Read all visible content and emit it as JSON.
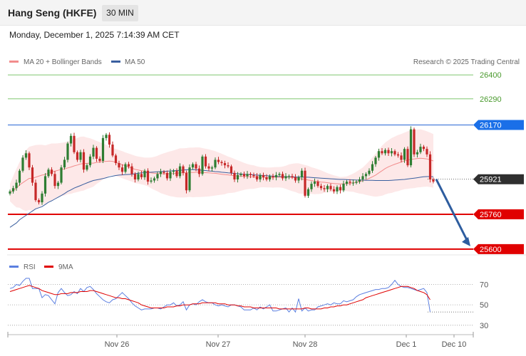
{
  "header": {
    "instrument": "Hang Seng (HKFE)",
    "timeframe": "30 MIN",
    "datetime": "Monday, December 1, 2025 7:14:39 AM CET"
  },
  "legend": {
    "ma20": "MA 20 + Bollinger Bands",
    "ma50": "MA 50",
    "copyright": "Research © 2025 Trading Central",
    "rsi": "RSI",
    "ma9": "9MA"
  },
  "colors": {
    "ma20": "#f28c8c",
    "ma50": "#3a5f9f",
    "band_fill": "#fde4e4",
    "bull": "#2e7d32",
    "bear": "#c62828",
    "resistance": "#6fbf5a",
    "pivot": "#4a7fdc",
    "support": "#e00000",
    "current": "#333333",
    "arrow": "#2e5d9f",
    "rsi": "#5b7fe0",
    "rsi_ma": "#e00000"
  },
  "chart_data": [
    {
      "type": "candlestick",
      "title": "",
      "ylim": [
        25580,
        26430
      ],
      "y_ticks": [
        26400,
        26290,
        26170,
        25921,
        25760,
        25600
      ],
      "x_ticks": [
        "Nov 26",
        "Nov 27",
        "Nov 28",
        "Dec 1",
        "Dec 10"
      ],
      "levels": [
        {
          "value": 26400,
          "label": "26400",
          "kind": "resistance"
        },
        {
          "value": 26290,
          "label": "26290",
          "kind": "resistance"
        },
        {
          "value": 26170,
          "label": "26170",
          "kind": "pivot"
        },
        {
          "value": 25921,
          "label": "25921",
          "kind": "current"
        },
        {
          "value": 25760,
          "label": "25760",
          "kind": "support"
        },
        {
          "value": 25600,
          "label": "25600",
          "kind": "support"
        }
      ],
      "forecast": {
        "from": 25921,
        "to": 25600,
        "direction": "down"
      },
      "close": [
        25865,
        25880,
        25905,
        25960,
        26020,
        26040,
        25975,
        25905,
        25825,
        25815,
        25855,
        25935,
        25965,
        25945,
        25890,
        25905,
        25975,
        26010,
        26085,
        26120,
        26045,
        26010,
        26045,
        25965,
        25985,
        26025,
        26065,
        26015,
        26005,
        26110,
        26125,
        26080,
        26030,
        25995,
        25975,
        25955,
        25990,
        25980,
        25945,
        25920,
        25945,
        25930,
        25960,
        25910,
        25915,
        25925,
        25945,
        25955,
        25950,
        25925,
        25955,
        25960,
        25935,
        25980,
        25950,
        25870,
        25975,
        25990,
        25970,
        25945,
        26025,
        25980,
        25970,
        25975,
        26010,
        26000,
        25995,
        25985,
        25980,
        25950,
        25920,
        25940,
        25945,
        25935,
        25945,
        25940,
        25935,
        25920,
        25940,
        25930,
        25920,
        25935,
        25930,
        25940,
        25945,
        25925,
        25935,
        25935,
        25930,
        25915,
        25930,
        25960,
        25845,
        25875,
        25900,
        25910,
        25890,
        25880,
        25875,
        25890,
        25875,
        25865,
        25885,
        25870,
        25900,
        25910,
        25905,
        25905,
        25910,
        25920,
        25935,
        25945,
        25960,
        25990,
        26020,
        26050,
        26040,
        26055,
        26040,
        26050,
        26035,
        26030,
        26010,
        26060,
        25985,
        26150,
        26035,
        26045,
        26070,
        26060,
        26035,
        25920,
        25910
      ],
      "upper_band": [
        25900,
        25935,
        25968,
        26000,
        26030,
        26055,
        26070,
        26074,
        26078,
        26079,
        26079,
        26076,
        26081,
        26085,
        26085,
        26086,
        26088,
        26090,
        26094,
        26100,
        26105,
        26110,
        26116,
        26117,
        26112,
        26109,
        26103,
        26097,
        26091,
        26085,
        26079,
        26071,
        26065,
        26060,
        26055,
        26050,
        26044,
        26039,
        26034,
        26029,
        26025,
        26023,
        26020,
        26020,
        26021,
        26024,
        26029,
        26035,
        26040,
        26045,
        26049,
        26053,
        26058,
        26063,
        26063,
        26064,
        26066,
        26066,
        26067,
        26067,
        26064,
        26061,
        26058,
        26054,
        26050,
        26044,
        26038,
        26032,
        26025,
        26020,
        26014,
        26008,
        26002,
        25996,
        25991,
        25987,
        25985,
        25980,
        25977,
        25976,
        25975,
        25975,
        25976,
        25977,
        25977,
        25979,
        25983,
        25989,
        25992,
        25994,
        25994,
        25990,
        25986,
        25982,
        25976,
        25972,
        25967,
        25962,
        25955,
        25949,
        25944,
        25939,
        25935,
        25931,
        25932,
        25934,
        25940,
        25947,
        25955,
        25965,
        25975,
        25989,
        26004,
        26021,
        26039,
        26057,
        26075,
        26089,
        26100,
        26110,
        26117,
        26124,
        26129,
        26135,
        26141,
        26145,
        26148,
        26149,
        26150,
        26146,
        26141,
        26135,
        26128
      ],
      "ma20": [
        25860,
        25870,
        25880,
        25895,
        25905,
        25915,
        25925,
        25925,
        25930,
        25935,
        25940,
        25942,
        25950,
        25955,
        25958,
        25962,
        25966,
        25968,
        25973,
        25977,
        25982,
        25986,
        25991,
        25993,
        25994,
        25995,
        25995,
        25998,
        26000,
        26002,
        26003,
        26004,
        26003,
        25998,
        25993,
        25988,
        25982,
        25977,
        25972,
        25966,
        25963,
        25960,
        25957,
        25954,
        25950,
        25948,
        25947,
        25946,
        25946,
        25946,
        25946,
        25947,
        25948,
        25950,
        25950,
        25951,
        25953,
        25952,
        25953,
        25953,
        25952,
        25951,
        25950,
        25949,
        25948,
        25946,
        25944,
        25942,
        25941,
        25939,
        25937,
        25936,
        25935,
        25934,
        25933,
        25932,
        25931,
        25930,
        25930,
        25930,
        25929,
        25929,
        25929,
        25930,
        25930,
        25930,
        25930,
        25930,
        25929,
        25928,
        25925,
        25922,
        25920,
        25917,
        25915,
        25912,
        25910,
        25908,
        25907,
        25905,
        25903,
        25901,
        25900,
        25899,
        25900,
        25900,
        25902,
        25905,
        25907,
        25910,
        25914,
        25919,
        25925,
        25932,
        25940,
        25950,
        25960,
        25970,
        25978,
        25984,
        25990,
        25995,
        26000,
        26005,
        26009,
        26012,
        26014,
        26016,
        26017,
        26016,
        26014,
        26010,
        26005
      ],
      "ma50": [
        25700,
        25710,
        25720,
        25735,
        25745,
        25755,
        25765,
        25775,
        25785,
        25790,
        25795,
        25805,
        25815,
        25822,
        25830,
        25838,
        25846,
        25855,
        25865,
        25872,
        25880,
        25886,
        25892,
        25898,
        25904,
        25910,
        25915,
        25918,
        25921,
        25924,
        25928,
        25932,
        25935,
        25938,
        25940,
        25941,
        25942,
        25943,
        25944,
        25946,
        25948,
        25950,
        25951,
        25952,
        25953,
        25954,
        25955,
        25956,
        25957,
        25958,
        25959,
        25960,
        25961,
        25962,
        25963,
        25964,
        25965,
        25965,
        25964,
        25963,
        25962,
        25961,
        25959,
        25958,
        25956,
        25955,
        25953,
        25952,
        25950,
        25949,
        25947,
        25946,
        25945,
        25944,
        25943,
        25942,
        25941,
        25940,
        25939,
        25938,
        25937,
        25936,
        25935,
        25934,
        25933,
        25933,
        25932,
        25932,
        25932,
        25931,
        25931,
        25931,
        25930,
        25930,
        25929,
        25928,
        25927,
        25926,
        25925,
        25924,
        25923,
        25922,
        25921,
        25920,
        25920,
        25919,
        25918,
        25918,
        25917,
        25917,
        25917,
        25916,
        25916,
        25916,
        25915,
        25915,
        25915,
        25915,
        25915,
        25916,
        25917,
        25918,
        25919,
        25920,
        25922,
        25924,
        25926,
        25928,
        25930,
        25932,
        25933,
        25933,
        25932
      ]
    },
    {
      "type": "line",
      "title": "",
      "ylim": [
        25,
        78
      ],
      "y_ticks": [
        70,
        50,
        30
      ],
      "rsi_latest": 43,
      "series": [
        {
          "name": "RSI",
          "values": [
            66,
            67,
            70,
            69,
            73,
            76,
            76,
            66,
            66,
            66,
            57,
            60,
            59,
            55,
            51,
            62,
            66,
            62,
            59,
            60,
            63,
            61,
            66,
            63,
            67,
            68,
            65,
            61,
            58,
            55,
            53,
            52,
            55,
            56,
            59,
            62,
            59,
            56,
            52,
            49,
            47,
            45,
            46,
            46,
            46,
            47,
            47,
            46,
            48,
            50,
            50,
            52,
            49,
            50,
            53,
            45,
            50,
            51,
            50,
            53,
            55,
            53,
            52,
            52,
            50,
            49,
            50,
            49,
            48,
            50,
            50,
            49,
            48,
            45,
            45,
            45,
            47,
            45,
            48,
            46,
            48,
            50,
            44,
            44,
            45,
            46,
            47,
            43,
            47,
            43,
            56,
            44,
            47,
            44,
            45,
            45,
            48,
            49,
            50,
            51,
            50,
            52,
            51,
            51,
            54,
            53,
            54,
            55,
            58,
            60,
            61,
            62,
            63,
            64,
            65,
            65,
            66,
            66,
            67,
            70,
            74,
            70,
            68,
            67,
            67,
            66,
            65,
            64,
            65,
            66,
            62,
            43
          ]
        },
        {
          "name": "9MA",
          "values": [
            63,
            64,
            65,
            66,
            67,
            68,
            69,
            68,
            67,
            66,
            64,
            63,
            62,
            61,
            60,
            60,
            61,
            61,
            61,
            62,
            62,
            62,
            63,
            63,
            63,
            64,
            64,
            63,
            62,
            61,
            60,
            59,
            58,
            57,
            57,
            56,
            56,
            55,
            54,
            53,
            52,
            50,
            49,
            48,
            47,
            47,
            47,
            47,
            47,
            48,
            48,
            48,
            49,
            49,
            50,
            50,
            50,
            51,
            51,
            51,
            52,
            52,
            52,
            52,
            52,
            51,
            51,
            51,
            50,
            50,
            50,
            49,
            49,
            48,
            48,
            48,
            47,
            47,
            47,
            47,
            47,
            47,
            47,
            47,
            46,
            46,
            46,
            46,
            46,
            46,
            46,
            46,
            47,
            47,
            46,
            46,
            46,
            46,
            47,
            47,
            48,
            48,
            49,
            49,
            50,
            50,
            51,
            52,
            53,
            54,
            55,
            57,
            58,
            59,
            60,
            61,
            62,
            63,
            64,
            65,
            66,
            67,
            68,
            68,
            68,
            67,
            66,
            64,
            63,
            62,
            60,
            55
          ]
        }
      ]
    }
  ]
}
